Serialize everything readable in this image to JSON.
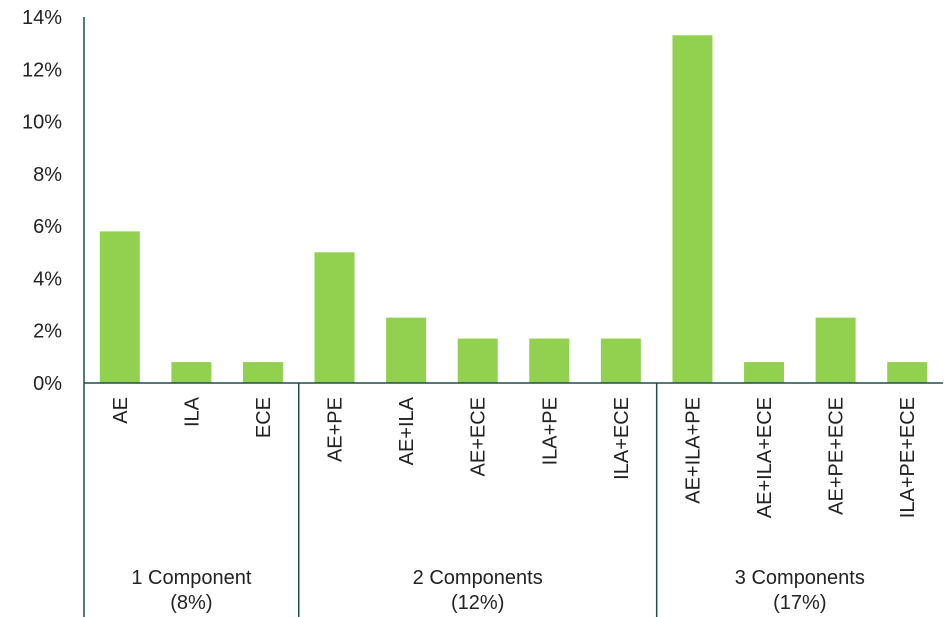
{
  "chart_data": {
    "type": "bar",
    "categories": [
      "AE",
      "ILA",
      "ECE",
      "AE+PE",
      "AE+ILA",
      "AE+ECE",
      "ILA+PE",
      "ILA+ECE",
      "AE+ILA+PE",
      "AE+ILA+ECE",
      "AE+PE+ECE",
      "ILA+PE+ECE"
    ],
    "values": [
      5.8,
      0.8,
      0.8,
      5.0,
      2.5,
      1.7,
      1.7,
      1.7,
      13.3,
      0.8,
      2.5,
      0.8
    ],
    "yticks": [
      "0%",
      "2%",
      "4%",
      "6%",
      "8%",
      "10%",
      "12%",
      "14%"
    ],
    "ylim": [
      0,
      14
    ],
    "groups": [
      {
        "line1": "1 Component",
        "line2": "(8%)",
        "count": 3
      },
      {
        "line1": "2 Components",
        "line2": "(12%)",
        "count": 5
      },
      {
        "line1": "3 Components",
        "line2": "(17%)",
        "count": 4
      }
    ],
    "bar_color": "#92d050",
    "axis_color": "#1f4e4a",
    "grid": false,
    "legend": "none"
  }
}
